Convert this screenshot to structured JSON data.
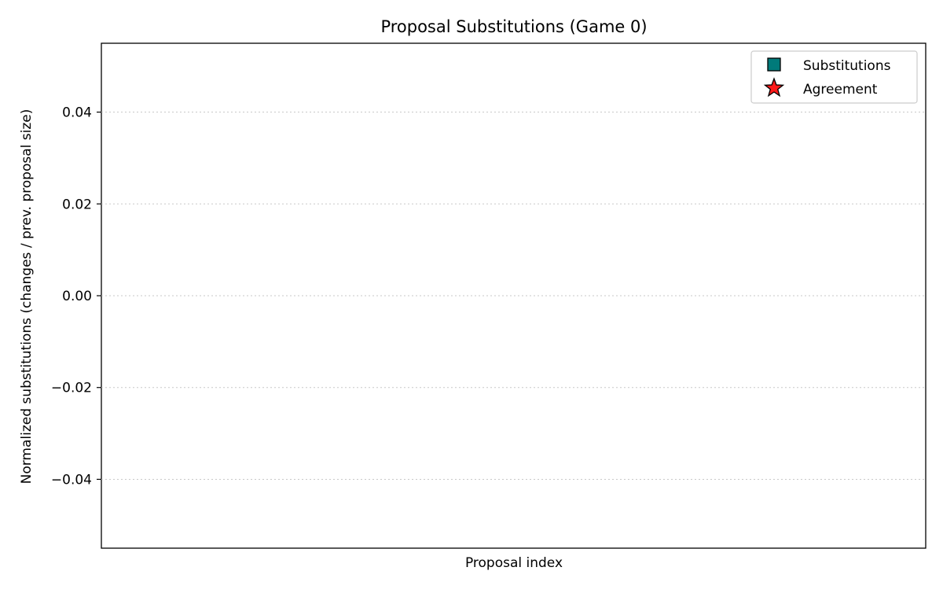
{
  "chart_data": {
    "type": "scatter",
    "title": "Proposal Substitutions (Game 0)",
    "xlabel": "Proposal index",
    "ylabel": "Normalized substitutions (changes / prev. proposal size)",
    "ylim": [
      -0.055,
      0.055
    ],
    "yticks": [
      0.04,
      0.02,
      0.0,
      -0.02,
      -0.04
    ],
    "ytick_labels": [
      "0.04",
      "0.02",
      "0.00",
      "−0.02",
      "−0.04"
    ],
    "grid": {
      "y": true,
      "x": false,
      "style": "dotted"
    },
    "legend_position": "top-right",
    "series": [
      {
        "name": "Substitutions",
        "marker": "square",
        "color": "#007a7a",
        "points": []
      },
      {
        "name": "Agreement",
        "marker": "star",
        "color": "#ff1a1a",
        "points": []
      }
    ]
  }
}
